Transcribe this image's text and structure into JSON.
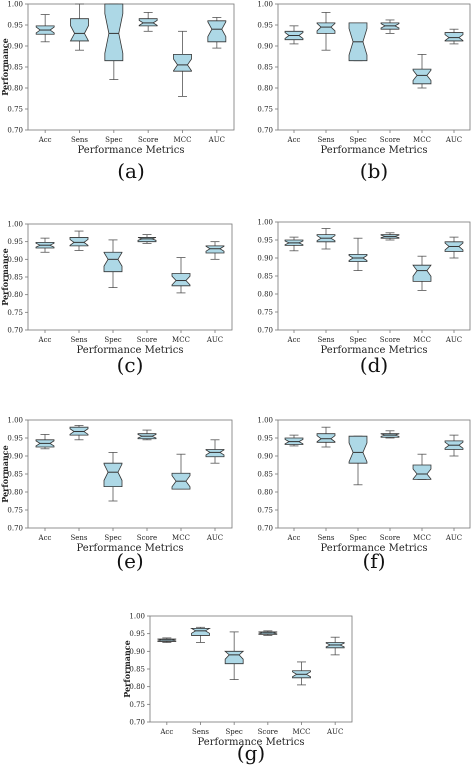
{
  "chart_data": [
    {
      "type": "box",
      "caption": "(a)",
      "xlabel": "Performance Metrics",
      "ylabel": "Performance",
      "ylim": [
        0.7,
        1.0
      ],
      "yticks": [
        "0.70",
        "0.75",
        "0.80",
        "0.85",
        "0.90",
        "0.95",
        "1.00"
      ],
      "categories": [
        "Acc",
        "Sens",
        "Spec",
        "Score",
        "MCC",
        "AUC"
      ],
      "boxes": [
        {
          "whislo": 0.91,
          "q1": 0.928,
          "med": 0.938,
          "q3": 0.948,
          "whishi": 0.975
        },
        {
          "whislo": 0.89,
          "q1": 0.912,
          "med": 0.93,
          "q3": 0.965,
          "whishi": 1.0
        },
        {
          "whislo": 0.82,
          "q1": 0.865,
          "med": 0.93,
          "q3": 1.0,
          "whishi": 1.0
        },
        {
          "whislo": 0.935,
          "q1": 0.948,
          "med": 0.955,
          "q3": 0.965,
          "whishi": 0.98
        },
        {
          "whislo": 0.78,
          "q1": 0.84,
          "med": 0.855,
          "q3": 0.88,
          "whishi": 0.935
        },
        {
          "whislo": 0.895,
          "q1": 0.91,
          "med": 0.94,
          "q3": 0.96,
          "whishi": 0.968
        }
      ]
    },
    {
      "type": "box",
      "caption": "(b)",
      "xlabel": "Performance Metrics",
      "ylabel": "",
      "ylim": [
        0.7,
        1.0
      ],
      "yticks": [
        "0.70",
        "0.75",
        "0.80",
        "0.85",
        "0.90",
        "0.95",
        "1.00"
      ],
      "categories": [
        "Acc",
        "Sens",
        "Spec",
        "Score",
        "MCC",
        "AUC"
      ],
      "boxes": [
        {
          "whislo": 0.905,
          "q1": 0.915,
          "med": 0.925,
          "q3": 0.935,
          "whishi": 0.948
        },
        {
          "whislo": 0.89,
          "q1": 0.93,
          "med": 0.945,
          "q3": 0.955,
          "whishi": 0.98
        },
        {
          "whislo": 0.865,
          "q1": 0.865,
          "med": 0.91,
          "q3": 0.955,
          "whishi": 0.955
        },
        {
          "whislo": 0.93,
          "q1": 0.94,
          "med": 0.948,
          "q3": 0.955,
          "whishi": 0.962
        },
        {
          "whislo": 0.8,
          "q1": 0.81,
          "med": 0.83,
          "q3": 0.845,
          "whishi": 0.88
        },
        {
          "whislo": 0.905,
          "q1": 0.912,
          "med": 0.92,
          "q3": 0.932,
          "whishi": 0.94
        }
      ]
    },
    {
      "type": "box",
      "caption": "(c)",
      "xlabel": "Performance Metrics",
      "ylabel": "Performance",
      "ylim": [
        0.7,
        1.0
      ],
      "yticks": [
        "0.70",
        "0.75",
        "0.80",
        "0.85",
        "0.90",
        "0.95",
        "1.00"
      ],
      "categories": [
        "Acc",
        "Sens",
        "Spec",
        "Score",
        "MCC",
        "AUC"
      ],
      "boxes": [
        {
          "whislo": 0.92,
          "q1": 0.932,
          "med": 0.94,
          "q3": 0.948,
          "whishi": 0.96
        },
        {
          "whislo": 0.925,
          "q1": 0.938,
          "med": 0.948,
          "q3": 0.962,
          "whishi": 0.98
        },
        {
          "whislo": 0.82,
          "q1": 0.865,
          "med": 0.9,
          "q3": 0.92,
          "whishi": 0.955
        },
        {
          "whislo": 0.945,
          "q1": 0.95,
          "med": 0.958,
          "q3": 0.962,
          "whishi": 0.97
        },
        {
          "whislo": 0.805,
          "q1": 0.825,
          "med": 0.84,
          "q3": 0.86,
          "whishi": 0.905
        },
        {
          "whislo": 0.9,
          "q1": 0.918,
          "med": 0.93,
          "q3": 0.938,
          "whishi": 0.95
        }
      ]
    },
    {
      "type": "box",
      "caption": "(d)",
      "xlabel": "Performance Metrics",
      "ylabel": "",
      "ylim": [
        0.7,
        1.0
      ],
      "yticks": [
        "0.70",
        "0.75",
        "0.80",
        "0.85",
        "0.90",
        "0.95",
        "1.00"
      ],
      "categories": [
        "Acc",
        "Sens",
        "Spec",
        "Score",
        "MCC",
        "AUC"
      ],
      "boxes": [
        {
          "whislo": 0.92,
          "q1": 0.935,
          "med": 0.942,
          "q3": 0.95,
          "whishi": 0.958
        },
        {
          "whislo": 0.925,
          "q1": 0.945,
          "med": 0.955,
          "q3": 0.965,
          "whishi": 0.982
        },
        {
          "whislo": 0.865,
          "q1": 0.89,
          "med": 0.9,
          "q3": 0.91,
          "whishi": 0.955
        },
        {
          "whislo": 0.95,
          "q1": 0.955,
          "med": 0.96,
          "q3": 0.965,
          "whishi": 0.97
        },
        {
          "whislo": 0.81,
          "q1": 0.835,
          "med": 0.865,
          "q3": 0.88,
          "whishi": 0.905
        },
        {
          "whislo": 0.9,
          "q1": 0.918,
          "med": 0.932,
          "q3": 0.945,
          "whishi": 0.958
        }
      ]
    },
    {
      "type": "box",
      "caption": "(e)",
      "xlabel": "Performance Metrics",
      "ylabel": "Performance",
      "ylim": [
        0.7,
        1.0
      ],
      "yticks": [
        "0.70",
        "0.75",
        "0.80",
        "0.85",
        "0.90",
        "0.95",
        "1.00"
      ],
      "categories": [
        "Acc",
        "Sens",
        "Spec",
        "Score",
        "MCC",
        "AUC"
      ],
      "boxes": [
        {
          "whislo": 0.92,
          "q1": 0.925,
          "med": 0.935,
          "q3": 0.945,
          "whishi": 0.96
        },
        {
          "whislo": 0.945,
          "q1": 0.958,
          "med": 0.968,
          "q3": 0.98,
          "whishi": 0.985
        },
        {
          "whislo": 0.775,
          "q1": 0.815,
          "med": 0.855,
          "q3": 0.88,
          "whishi": 0.91
        },
        {
          "whislo": 0.945,
          "q1": 0.948,
          "med": 0.955,
          "q3": 0.962,
          "whishi": 0.972
        },
        {
          "whislo": 0.808,
          "q1": 0.808,
          "med": 0.83,
          "q3": 0.852,
          "whishi": 0.905
        },
        {
          "whislo": 0.88,
          "q1": 0.898,
          "med": 0.91,
          "q3": 0.918,
          "whishi": 0.945
        }
      ]
    },
    {
      "type": "box",
      "caption": "(f)",
      "xlabel": "Performance Metrics",
      "ylabel": "",
      "ylim": [
        0.7,
        1.0
      ],
      "yticks": [
        "0.70",
        "0.75",
        "0.80",
        "0.85",
        "0.90",
        "0.95",
        "1.00"
      ],
      "categories": [
        "Acc",
        "Sens",
        "Spec",
        "Score",
        "MCC",
        "AUC"
      ],
      "boxes": [
        {
          "whislo": 0.928,
          "q1": 0.932,
          "med": 0.94,
          "q3": 0.95,
          "whishi": 0.958
        },
        {
          "whislo": 0.925,
          "q1": 0.938,
          "med": 0.948,
          "q3": 0.962,
          "whishi": 0.98
        },
        {
          "whislo": 0.82,
          "q1": 0.88,
          "med": 0.91,
          "q3": 0.955,
          "whishi": 0.955
        },
        {
          "whislo": 0.95,
          "q1": 0.952,
          "med": 0.958,
          "q3": 0.962,
          "whishi": 0.97
        },
        {
          "whislo": 0.835,
          "q1": 0.835,
          "med": 0.85,
          "q3": 0.875,
          "whishi": 0.905
        },
        {
          "whislo": 0.9,
          "q1": 0.918,
          "med": 0.93,
          "q3": 0.942,
          "whishi": 0.958
        }
      ]
    },
    {
      "type": "box",
      "caption": "(g)",
      "xlabel": "Performance Metrics",
      "ylabel": "Performance",
      "ylim": [
        0.7,
        1.0
      ],
      "yticks": [
        "0.70",
        "0.75",
        "0.80",
        "0.85",
        "0.90",
        "0.95",
        "1.00"
      ],
      "categories": [
        "Acc",
        "Sens",
        "Spec",
        "Score",
        "MCC",
        "AUC"
      ],
      "boxes": [
        {
          "whislo": 0.925,
          "q1": 0.928,
          "med": 0.932,
          "q3": 0.935,
          "whishi": 0.938
        },
        {
          "whislo": 0.925,
          "q1": 0.945,
          "med": 0.958,
          "q3": 0.965,
          "whishi": 0.968
        },
        {
          "whislo": 0.82,
          "q1": 0.865,
          "med": 0.89,
          "q3": 0.9,
          "whishi": 0.955
        },
        {
          "whislo": 0.945,
          "q1": 0.948,
          "med": 0.952,
          "q3": 0.955,
          "whishi": 0.958
        },
        {
          "whislo": 0.805,
          "q1": 0.825,
          "med": 0.835,
          "q3": 0.845,
          "whishi": 0.87
        },
        {
          "whislo": 0.89,
          "q1": 0.91,
          "med": 0.918,
          "q3": 0.925,
          "whishi": 0.94
        }
      ]
    }
  ],
  "colors": {
    "box_fill": "#add8e6",
    "box_edge": "#333333",
    "median": "#333333",
    "whisker": "#555555",
    "axes_frame": "#777777"
  }
}
